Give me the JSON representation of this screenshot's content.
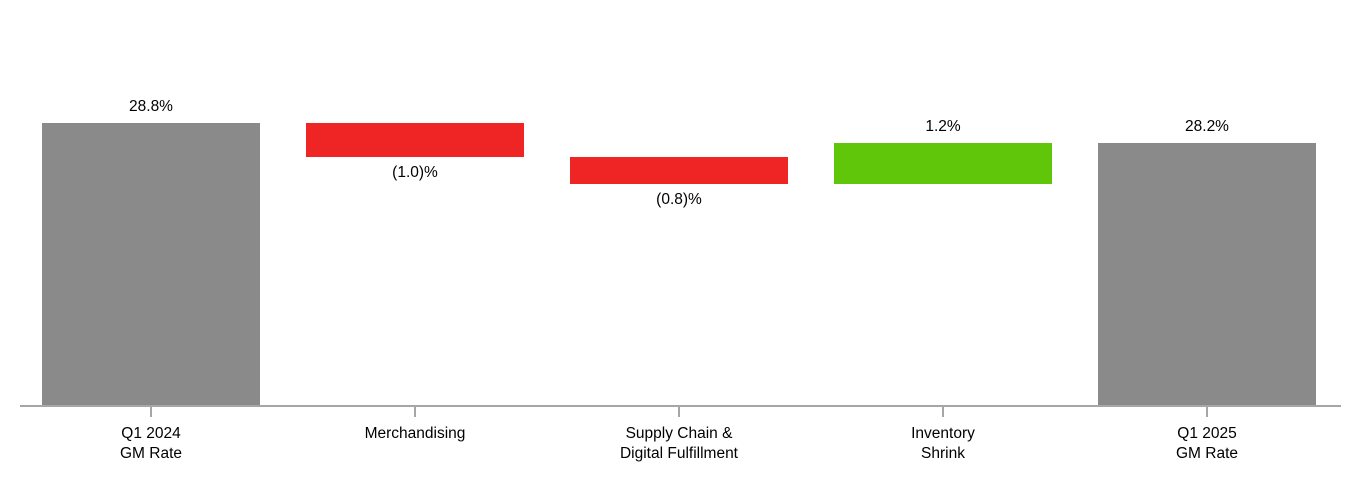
{
  "chart_data": {
    "type": "bar",
    "subtype": "waterfall",
    "unit": "%",
    "categories": [
      "Q1 2024 GM Rate",
      "Merchandising",
      "Supply Chain & Digital Fulfillment",
      "Inventory Shrink",
      "Q1 2025 GM Rate"
    ],
    "bars": [
      {
        "category_lines": [
          "Q1 2024",
          "GM Rate"
        ],
        "value": 28.8,
        "label": "28.8%",
        "kind": "total",
        "label_position": "above"
      },
      {
        "category_lines": [
          "Merchandising"
        ],
        "value": -1.0,
        "label": "(1.0)%",
        "kind": "decrease",
        "label_position": "below"
      },
      {
        "category_lines": [
          "Supply Chain &",
          "Digital Fulfillment"
        ],
        "value": -0.8,
        "label": "(0.8)%",
        "kind": "decrease",
        "label_position": "below"
      },
      {
        "category_lines": [
          "Inventory",
          "Shrink"
        ],
        "value": 1.2,
        "label": "1.2%",
        "kind": "increase",
        "label_position": "above"
      },
      {
        "category_lines": [
          "Q1 2025",
          "GM Rate"
        ],
        "value": 28.2,
        "label": "28.2%",
        "kind": "total",
        "label_position": "above"
      }
    ],
    "colors": {
      "total": "#8A8A8A",
      "decrease": "#EE2524",
      "increase": "#60C60A",
      "axis": "#A6A6A6",
      "label_text": "#000000"
    },
    "layout_hints": {
      "baseline_axis_visible": true,
      "y_axis_labels_visible": false,
      "gridlines": false,
      "legend": "none",
      "implied_y_min": 20.5,
      "implied_y_max": 29.5
    }
  }
}
